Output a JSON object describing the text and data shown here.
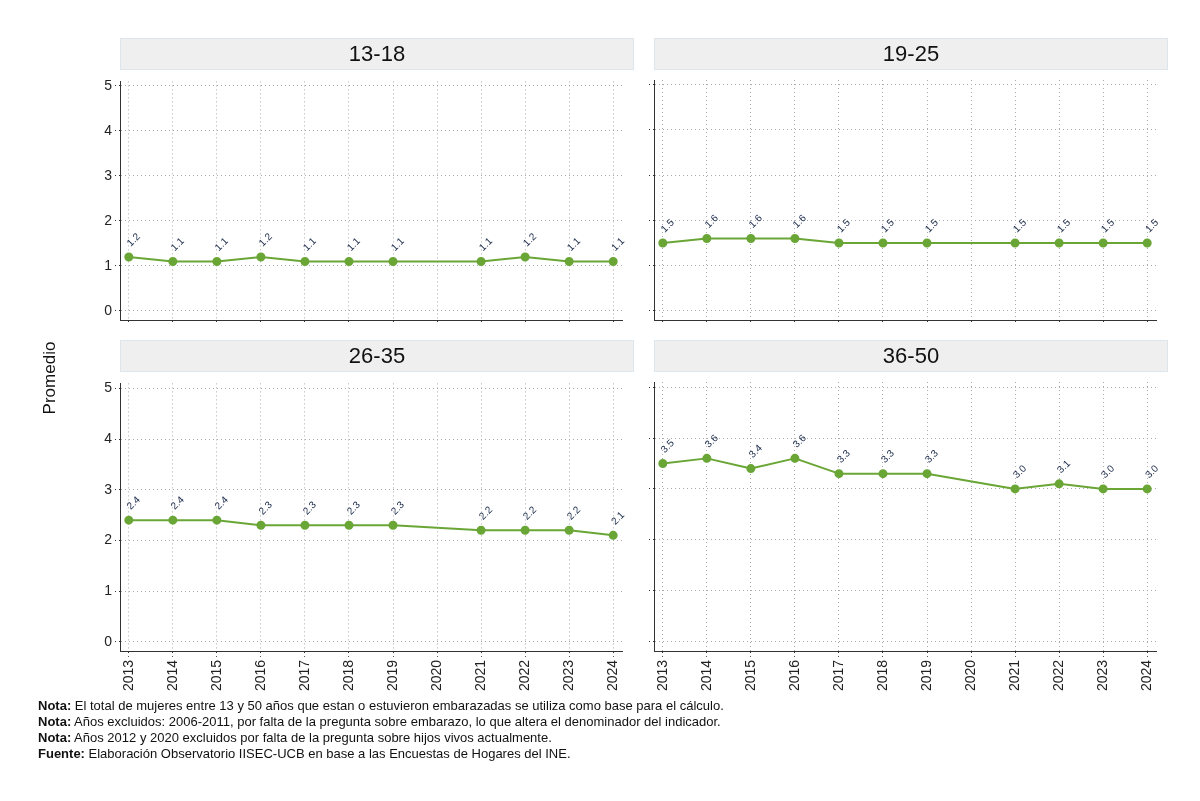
{
  "chart_data": [
    {
      "type": "line",
      "title": "13-18",
      "ylabel": "Promedio",
      "x": [
        2013,
        2014,
        2015,
        2016,
        2017,
        2018,
        2019,
        2021,
        2022,
        2023,
        2024
      ],
      "series": [
        {
          "color": "#6aa636",
          "values": [
            1.2,
            1.1,
            1.1,
            1.2,
            1.1,
            1.1,
            1.1,
            1.1,
            1.2,
            1.1,
            1.1
          ],
          "value_labels": [
            "1.2",
            "1.1",
            "1.1",
            "1.2",
            "1.1",
            "1.1",
            "1.1",
            "1.1",
            "1.2",
            "1.1",
            "1.1"
          ]
        }
      ],
      "xlim": [
        2012.8,
        2024.2
      ],
      "xticks": [
        2013,
        2014,
        2015,
        2016,
        2017,
        2018,
        2019,
        2020,
        2021,
        2022,
        2023,
        2024
      ],
      "ylim": [
        -0.2,
        5.1
      ],
      "yticks": [
        0,
        1,
        2,
        3,
        4,
        5
      ],
      "grid": true,
      "marker": "circle",
      "legend": false,
      "tick_labels": "y"
    },
    {
      "type": "line",
      "title": "19-25",
      "x": [
        2013,
        2014,
        2015,
        2016,
        2017,
        2018,
        2019,
        2021,
        2022,
        2023,
        2024
      ],
      "series": [
        {
          "color": "#6aa636",
          "values": [
            1.5,
            1.6,
            1.6,
            1.6,
            1.5,
            1.5,
            1.5,
            1.5,
            1.5,
            1.5,
            1.5
          ],
          "value_labels": [
            "1.5",
            "1.6",
            "1.6",
            "1.6",
            "1.5",
            "1.5",
            "1.5",
            "1.5",
            "1.5",
            "1.5",
            "1.5"
          ]
        }
      ],
      "xlim": [
        2012.8,
        2024.2
      ],
      "xticks": [
        2013,
        2014,
        2015,
        2016,
        2017,
        2018,
        2019,
        2020,
        2021,
        2022,
        2023,
        2024
      ],
      "ylim": [
        -0.2,
        5.1
      ],
      "yticks": [
        0,
        1,
        2,
        3,
        4,
        5
      ],
      "grid": true,
      "marker": "circle",
      "legend": false,
      "tick_labels": false
    },
    {
      "type": "line",
      "title": "26-35",
      "x": [
        2013,
        2014,
        2015,
        2016,
        2017,
        2018,
        2019,
        2021,
        2022,
        2023,
        2024
      ],
      "series": [
        {
          "color": "#6aa636",
          "values": [
            2.4,
            2.4,
            2.4,
            2.3,
            2.3,
            2.3,
            2.3,
            2.2,
            2.2,
            2.2,
            2.1
          ],
          "value_labels": [
            "2.4",
            "2.4",
            "2.4",
            "2.3",
            "2.3",
            "2.3",
            "2.3",
            "2.2",
            "2.2",
            "2.2",
            "2.1"
          ]
        }
      ],
      "xlim": [
        2012.8,
        2024.2
      ],
      "xticks": [
        2013,
        2014,
        2015,
        2016,
        2017,
        2018,
        2019,
        2020,
        2021,
        2022,
        2023,
        2024
      ],
      "ylim": [
        -0.2,
        5.1
      ],
      "yticks": [
        0,
        1,
        2,
        3,
        4,
        5
      ],
      "grid": true,
      "marker": "circle",
      "legend": false
    },
    {
      "type": "line",
      "title": "36-50",
      "x": [
        2013,
        2014,
        2015,
        2016,
        2017,
        2018,
        2019,
        2021,
        2022,
        2023,
        2024
      ],
      "series": [
        {
          "color": "#6aa636",
          "values": [
            3.5,
            3.6,
            3.4,
            3.6,
            3.3,
            3.3,
            3.3,
            3.0,
            3.1,
            3.0,
            3.0
          ],
          "value_labels": [
            "3.5",
            "3.6",
            "3.4",
            "3.6",
            "3.3",
            "3.3",
            "3.3",
            "3.0",
            "3.1",
            "3.0",
            "3.0"
          ]
        }
      ],
      "xlim": [
        2012.8,
        2024.2
      ],
      "xticks": [
        2013,
        2014,
        2015,
        2016,
        2017,
        2018,
        2019,
        2020,
        2021,
        2022,
        2023,
        2024
      ],
      "ylim": [
        -0.2,
        5.1
      ],
      "yticks": [
        0,
        1,
        2,
        3,
        4,
        5
      ],
      "grid": true,
      "marker": "circle",
      "legend": false,
      "tick_labels": "x",
      "annotations": [
        "Nota: El total de mujeres entre 13 y 50 años que estan o estuvieron embarazadas se utiliza como base para el cálculo.",
        "Nota: Años excluidos: 2006-2011, por falta de la pregunta sobre embarazo, lo que altera el denominador del indicador.",
        "Nota: Años 2012 y 2020 excluidos por falta de la pregunta sobre hijos vivos actualmente.",
        "Fuente: Elaboración Observatorio IISEC-UCB en base a las Encuestas de Hogares del INE."
      ]
    }
  ]
}
